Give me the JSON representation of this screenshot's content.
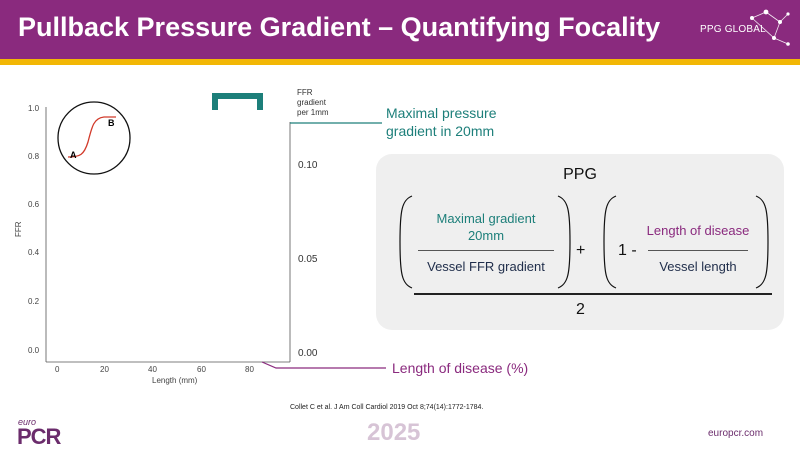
{
  "header": {
    "title": "Pullback Pressure Gradient – Quantifying Focality",
    "logo_text": "PPG GLOBAL",
    "colors": {
      "background": "#8a2a7e",
      "stripe": "#f2b705"
    }
  },
  "chart": {
    "ylabel": "FFR",
    "xlabel": "Length (mm)",
    "y_ticks": [
      "1.0",
      "0.8",
      "0.6",
      "0.4",
      "0.2",
      "0.0"
    ],
    "x_ticks": [
      "0",
      "20",
      "40",
      "60",
      "80"
    ],
    "right_axis_title_lines": [
      "FFR",
      "gradient",
      "per 1mm"
    ],
    "right_ticks": [
      "0.10",
      "0.05",
      "0.00"
    ],
    "inset_label_a": "A",
    "inset_label_b": "B"
  },
  "annotations": {
    "max_gradient": "Maximal pressure gradient in 20mm",
    "length_of_disease": "Length of disease (%)"
  },
  "formula": {
    "title": "PPG",
    "left_numerator_lines": [
      "Maximal gradient",
      "20mm"
    ],
    "left_denominator": "Vessel FFR gradient",
    "plus": "+",
    "one_minus": "1 -",
    "right_numerator": "Length of disease",
    "right_denominator": "Vessel length",
    "divisor": "2"
  },
  "footer": {
    "citation": "Collet C et al. J Am Coll Cardiol  2019 Oct 8;74(14):1772-1784.",
    "brand_small": "euro",
    "brand_big": "PCR",
    "year": "2025",
    "website": "europcr.com"
  },
  "colors": {
    "teal": "#1d7f7a",
    "purple": "#8a2a7e",
    "navy": "#1f2d4a"
  }
}
